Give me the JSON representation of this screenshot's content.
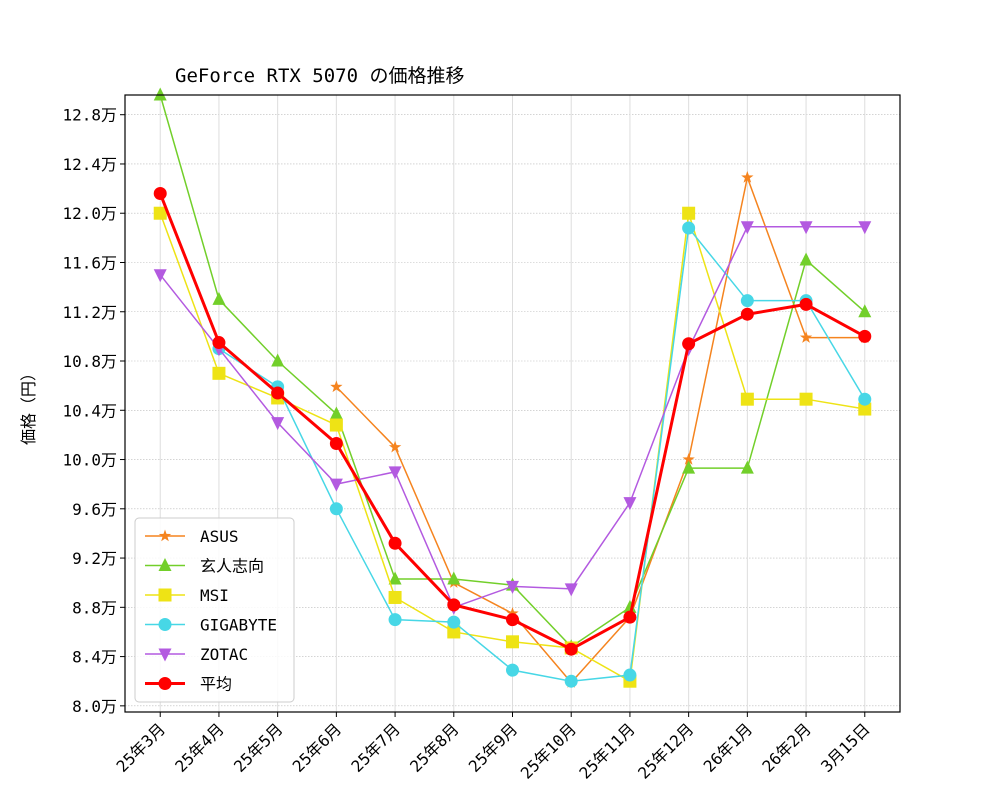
{
  "chart_data": {
    "type": "line",
    "title": "GeForce RTX 5070 の価格推移",
    "xlabel": "",
    "ylabel": "価格（円）",
    "ylim": [
      7.95,
      12.96
    ],
    "y_unit_suffix": "万",
    "yticks": [
      8.0,
      8.4,
      8.8,
      9.2,
      9.6,
      10.0,
      10.4,
      10.8,
      11.2,
      11.6,
      12.0,
      12.4,
      12.8
    ],
    "ytick_labels": [
      "8.0万",
      "8.4万",
      "8.8万",
      "9.2万",
      "9.6万",
      "10.0万",
      "10.4万",
      "10.8万",
      "11.2万",
      "11.6万",
      "12.0万",
      "12.4万",
      "12.8万"
    ],
    "categories": [
      "25年3月",
      "25年4月",
      "25年5月",
      "25年6月",
      "25年7月",
      "25年8月",
      "25年9月",
      "25年10月",
      "25年11月",
      "25年12月",
      "26年1月",
      "26年2月",
      "3月15日"
    ],
    "grid": true,
    "legend_position": "lower-left",
    "series": [
      {
        "name": "ASUS",
        "color": "#f5841f",
        "marker": "star",
        "values": [
          null,
          null,
          null,
          10.59,
          10.1,
          9.0,
          8.75,
          8.19,
          8.72,
          10.0,
          12.29,
          10.99,
          10.99
        ]
      },
      {
        "name": "玄人志向",
        "color": "#72cf2a",
        "marker": "triangle-up",
        "values": [
          12.96,
          11.3,
          10.8,
          10.37,
          9.03,
          9.03,
          8.98,
          8.48,
          8.8,
          9.93,
          9.93,
          11.62,
          11.2
        ]
      },
      {
        "name": "MSI",
        "color": "#eee315",
        "marker": "square",
        "values": [
          12.0,
          10.7,
          10.5,
          10.28,
          8.88,
          8.6,
          8.52,
          8.47,
          8.2,
          12.0,
          10.49,
          10.49,
          10.41
        ]
      },
      {
        "name": "GIGABYTE",
        "color": "#47d7e6",
        "marker": "circle",
        "values": [
          null,
          10.9,
          10.59,
          9.6,
          8.7,
          8.68,
          8.29,
          8.2,
          8.25,
          11.88,
          11.29,
          11.29,
          10.49
        ]
      },
      {
        "name": "ZOTAC",
        "color": "#b35ae0",
        "marker": "triangle-down",
        "values": [
          11.5,
          10.9,
          10.3,
          9.8,
          9.9,
          8.8,
          8.97,
          8.95,
          9.65,
          10.9,
          11.89,
          11.89,
          11.89
        ]
      },
      {
        "name": "平均",
        "color": "#ff0000",
        "marker": "circle",
        "bold": true,
        "values": [
          12.16,
          10.95,
          10.54,
          10.13,
          9.32,
          8.82,
          8.7,
          8.46,
          8.72,
          10.94,
          11.18,
          11.26,
          11.0
        ]
      }
    ]
  }
}
